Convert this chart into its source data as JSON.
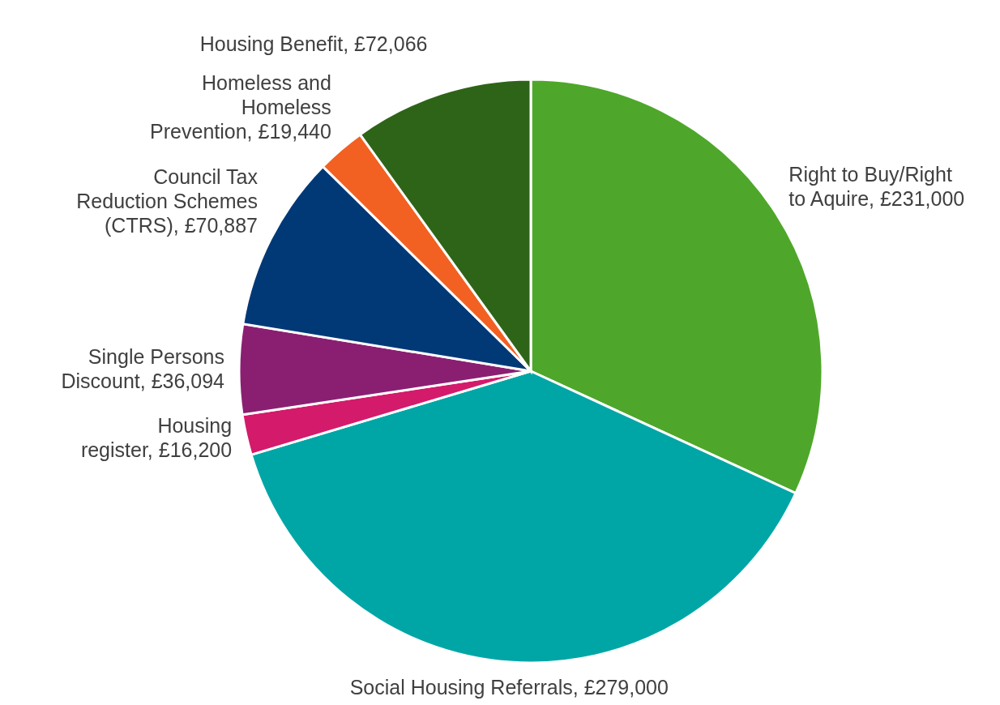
{
  "chart_data": {
    "type": "pie",
    "categories": [
      "Right to Buy/Right to Aquire",
      "Social Housing Referrals",
      "Housing register",
      "Single Persons Discount",
      "Council Tax Reduction Schemes (CTRS)",
      "Homeless and Homeless Prevention",
      "Housing Benefit"
    ],
    "values": [
      231000,
      279000,
      16200,
      36094,
      70887,
      19440,
      72066
    ],
    "value_labels": [
      "£231,000",
      "£279,000",
      "£16,200",
      "£36,094",
      "£70,887",
      "£19,440",
      "£72,066"
    ],
    "colors": [
      "#4ea72a",
      "#00a6a6",
      "#d41a6b",
      "#8a1f72",
      "#003976",
      "#f26122",
      "#2e6418"
    ],
    "legend": false
  }
}
